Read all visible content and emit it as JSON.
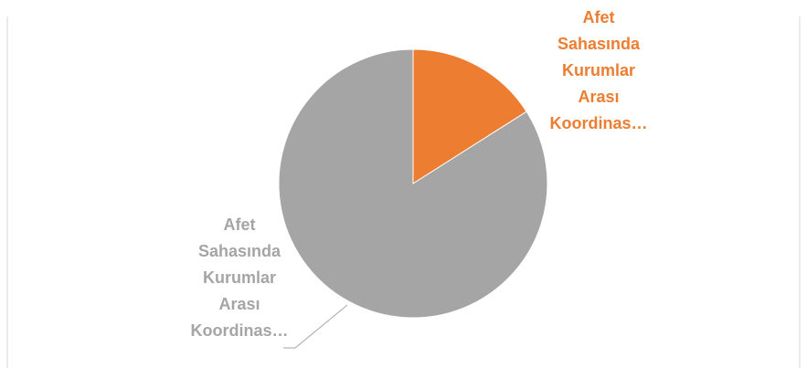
{
  "chart_data": {
    "type": "pie",
    "categories": [
      "Afet Sahasında Kurumlar Arası Koordinas…",
      "Afet Sahasında Kurumlar Arası Koordinas…"
    ],
    "values": [
      16,
      84
    ],
    "colors": [
      "#ED7D31",
      "#A5A5A5"
    ]
  }
}
